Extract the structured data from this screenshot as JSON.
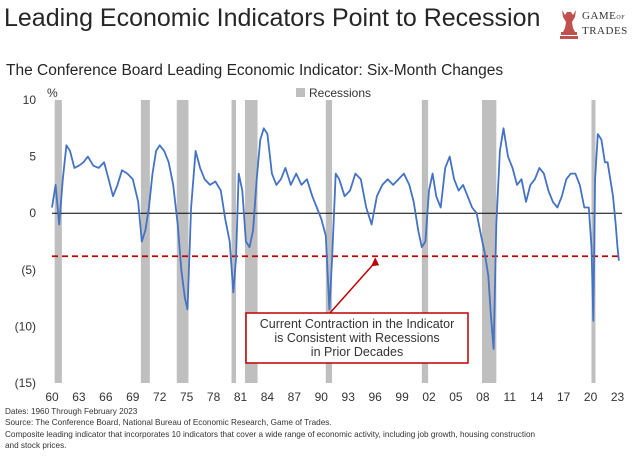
{
  "header": {
    "headline": "Leading Economic Indicators Point to Recession",
    "logo_line1": "GAME",
    "logo_of": "OF",
    "logo_line2": "TRADES"
  },
  "chart_data": {
    "type": "line",
    "title": "The Conference Board Leading Economic Indicator: Six-Month Changes",
    "ylabel": "%",
    "ylim": [
      -15,
      10
    ],
    "xlim": [
      1960,
      2023.5
    ],
    "y_ticks": [
      10,
      5,
      0,
      -5,
      -10,
      -15
    ],
    "y_tick_labels": [
      "10",
      "5",
      "0",
      "(5)",
      "(10)",
      "(15)"
    ],
    "x_ticks": [
      1960,
      1963,
      1966,
      1969,
      1972,
      1975,
      1978,
      1981,
      1984,
      1987,
      1990,
      1993,
      1996,
      1999,
      2002,
      2005,
      2008,
      2011,
      2014,
      2017,
      2020,
      2023
    ],
    "x_tick_labels": [
      "60",
      "63",
      "66",
      "69",
      "72",
      "75",
      "78",
      "81",
      "84",
      "87",
      "90",
      "93",
      "96",
      "99",
      "02",
      "05",
      "08",
      "11",
      "14",
      "17",
      "20",
      "23"
    ],
    "legend": "Recessions",
    "recessions": [
      [
        1960.3,
        1961.1
      ],
      [
        1969.9,
        1970.9
      ],
      [
        1973.9,
        1975.2
      ],
      [
        1980.0,
        1980.5
      ],
      [
        1981.5,
        1982.9
      ],
      [
        1990.5,
        1991.2
      ],
      [
        2001.2,
        2001.9
      ],
      [
        2007.9,
        2009.5
      ],
      [
        2020.1,
        2020.4
      ]
    ],
    "threshold": -3.8,
    "series": [
      {
        "name": "LEI six-month change",
        "x": [
          1960.0,
          1960.4,
          1960.8,
          1961.2,
          1961.6,
          1962.0,
          1962.5,
          1963.0,
          1963.5,
          1964.0,
          1964.6,
          1965.2,
          1965.8,
          1966.3,
          1966.8,
          1967.3,
          1967.8,
          1968.4,
          1969.0,
          1969.6,
          1970.0,
          1970.4,
          1970.8,
          1971.2,
          1971.6,
          1972.0,
          1972.5,
          1973.0,
          1973.5,
          1974.0,
          1974.4,
          1974.8,
          1975.1,
          1975.5,
          1976.0,
          1976.5,
          1977.0,
          1977.6,
          1978.2,
          1978.8,
          1979.3,
          1979.8,
          1980.2,
          1980.5,
          1980.8,
          1981.2,
          1981.6,
          1982.0,
          1982.4,
          1982.8,
          1983.2,
          1983.6,
          1984.0,
          1984.5,
          1985.0,
          1985.5,
          1986.0,
          1986.6,
          1987.2,
          1987.8,
          1988.4,
          1989.0,
          1989.5,
          1990.0,
          1990.5,
          1990.9,
          1991.2,
          1991.6,
          1992.0,
          1992.6,
          1993.2,
          1993.8,
          1994.4,
          1995.0,
          1995.6,
          1996.2,
          1996.8,
          1997.4,
          1998.0,
          1998.6,
          1999.2,
          1999.8,
          2000.3,
          2000.8,
          2001.2,
          2001.6,
          2002.0,
          2002.4,
          2002.8,
          2003.3,
          2003.8,
          2004.3,
          2004.8,
          2005.3,
          2005.8,
          2006.3,
          2006.8,
          2007.3,
          2007.8,
          2008.2,
          2008.6,
          2008.9,
          2009.2,
          2009.5,
          2009.9,
          2010.3,
          2010.8,
          2011.3,
          2011.8,
          2012.3,
          2012.8,
          2013.3,
          2013.8,
          2014.3,
          2014.8,
          2015.3,
          2015.8,
          2016.3,
          2016.8,
          2017.3,
          2017.8,
          2018.3,
          2018.8,
          2019.3,
          2019.8,
          2020.1,
          2020.3,
          2020.5,
          2020.8,
          2021.2,
          2021.6,
          2021.9,
          2022.2,
          2022.5,
          2022.8,
          2023.0,
          2023.15
        ],
        "y": [
          0.5,
          2.5,
          -1.0,
          3.0,
          6.0,
          5.5,
          4.0,
          4.2,
          4.5,
          5.0,
          4.2,
          4.0,
          4.5,
          3.0,
          1.5,
          2.5,
          3.8,
          3.5,
          3.0,
          1.0,
          -2.5,
          -1.5,
          0.5,
          3.5,
          5.5,
          6.0,
          5.5,
          4.5,
          2.5,
          -1.0,
          -5.0,
          -7.5,
          -8.5,
          0.5,
          5.5,
          4.0,
          3.0,
          2.5,
          2.8,
          2.0,
          -0.5,
          -2.5,
          -7.0,
          -4.0,
          3.5,
          2.0,
          -2.5,
          -3.0,
          -1.5,
          3.0,
          6.5,
          7.5,
          7.0,
          3.5,
          2.5,
          3.0,
          4.0,
          2.5,
          3.5,
          2.5,
          3.0,
          1.5,
          0.5,
          -0.5,
          -2.0,
          -8.5,
          -4.0,
          3.5,
          3.0,
          1.5,
          2.0,
          3.5,
          3.0,
          0.5,
          -1.0,
          1.5,
          2.5,
          3.0,
          2.5,
          3.0,
          3.5,
          2.5,
          1.0,
          -1.5,
          -3.0,
          -2.5,
          2.0,
          3.5,
          1.5,
          0.5,
          4.0,
          5.0,
          3.0,
          2.0,
          2.5,
          1.5,
          0.5,
          0.0,
          -2.0,
          -3.5,
          -5.5,
          -9.0,
          -12.0,
          -1.0,
          5.5,
          7.5,
          5.0,
          4.0,
          2.5,
          3.0,
          1.0,
          2.5,
          3.0,
          4.0,
          3.5,
          2.0,
          1.0,
          0.5,
          1.5,
          3.0,
          3.5,
          3.5,
          2.5,
          0.5,
          0.5,
          -3.0,
          -9.5,
          3.0,
          7.0,
          6.5,
          4.5,
          4.5,
          3.0,
          1.5,
          -1.0,
          -3.0,
          -4.2
        ]
      }
    ],
    "annotation": [
      "Current Contraction in the Indicator",
      "is Consistent with Recessions",
      "in Prior Decades"
    ]
  },
  "footer": {
    "dates": "Dates: 1960 Through February 2023",
    "source": "Source: The Conference Board, National Bureau of Economic Research, Game of Trades.",
    "note_line1": "Composite leading indicator that incorporates 10 indicators that cover a wide range of economic activity, including job growth, housing construction",
    "note_line2": "and stock prices."
  },
  "colors": {
    "line": "#4472C4",
    "recession": "#BFBFBF",
    "threshold": "#C00000",
    "annotation_border": "#C00000",
    "logo": "#C0504D"
  }
}
